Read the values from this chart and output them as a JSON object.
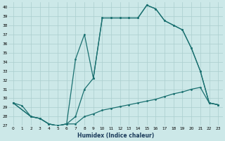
{
  "xlabel": "Humidex (Indice chaleur)",
  "background_color": "#cce8e8",
  "line_color": "#1a7070",
  "grid_color": "#aacece",
  "xlim": [
    -0.5,
    23.5
  ],
  "ylim": [
    27,
    40.5
  ],
  "xticks": [
    0,
    1,
    2,
    3,
    4,
    5,
    6,
    7,
    8,
    9,
    10,
    11,
    12,
    13,
    14,
    15,
    16,
    17,
    18,
    19,
    20,
    21,
    22,
    23
  ],
  "yticks": [
    27,
    28,
    29,
    30,
    31,
    32,
    33,
    34,
    35,
    36,
    37,
    38,
    39,
    40
  ],
  "line1_x": [
    0,
    1,
    2,
    3,
    4,
    5,
    6,
    7,
    8,
    9,
    10,
    11,
    12,
    13,
    14,
    15,
    16,
    17,
    18,
    19,
    20,
    21,
    22,
    23
  ],
  "line1_y": [
    29.5,
    29.2,
    28.0,
    27.8,
    27.2,
    27.0,
    27.2,
    27.2,
    28.0,
    28.3,
    28.7,
    28.9,
    29.1,
    29.3,
    29.5,
    29.7,
    29.9,
    30.2,
    30.5,
    30.7,
    31.0,
    31.2,
    29.5,
    29.3
  ],
  "line2_x": [
    0,
    2,
    3,
    4,
    5,
    6,
    7,
    8,
    9,
    10,
    11,
    12,
    13,
    14,
    15,
    16,
    17,
    18,
    19,
    20,
    21,
    22,
    23
  ],
  "line2_y": [
    29.5,
    28.0,
    27.8,
    27.2,
    27.0,
    27.2,
    34.3,
    37.0,
    32.2,
    38.8,
    38.8,
    38.8,
    38.8,
    38.8,
    40.2,
    39.8,
    38.5,
    38.0,
    37.5,
    35.5,
    33.0,
    29.5,
    29.3
  ],
  "line3_x": [
    0,
    2,
    3,
    4,
    5,
    6,
    7,
    8,
    9,
    10,
    11,
    12,
    13,
    14,
    15,
    16,
    17,
    18,
    19,
    20,
    21,
    22,
    23
  ],
  "line3_y": [
    29.5,
    28.0,
    27.8,
    27.2,
    27.0,
    27.2,
    28.0,
    31.0,
    32.2,
    38.8,
    38.8,
    38.8,
    38.8,
    38.8,
    40.2,
    39.8,
    38.5,
    38.0,
    37.5,
    35.5,
    33.0,
    29.5,
    29.3
  ]
}
